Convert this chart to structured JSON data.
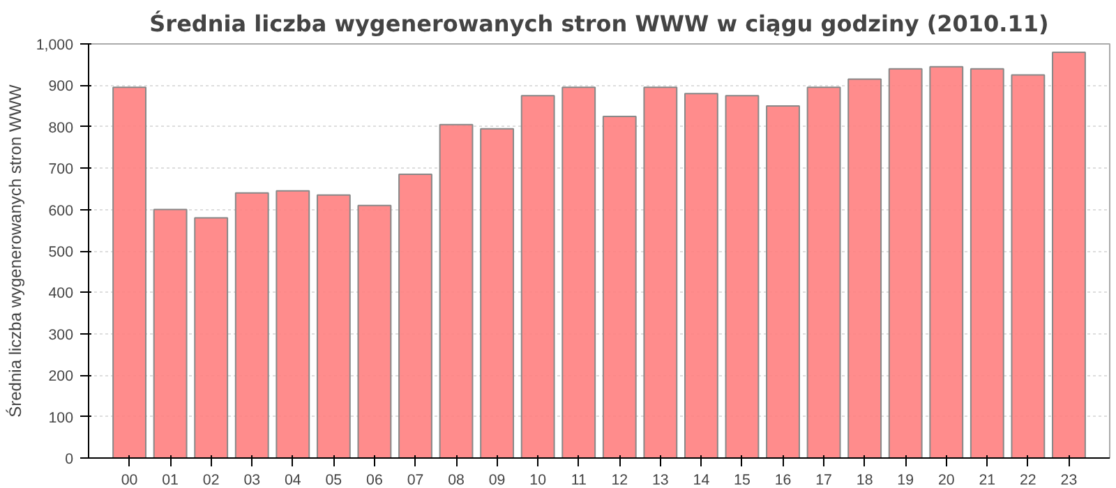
{
  "chart_data": {
    "type": "bar",
    "title": "Średnia liczba wygenerowanych stron WWW w ciągu godziny (2010.11)",
    "ylabel": "Średnia liczba wygenerowanych stron WWW",
    "categories": [
      "00",
      "01",
      "02",
      "03",
      "04",
      "05",
      "06",
      "07",
      "08",
      "09",
      "10",
      "11",
      "12",
      "13",
      "14",
      "15",
      "16",
      "17",
      "18",
      "19",
      "20",
      "21",
      "22",
      "23"
    ],
    "values": [
      895,
      600,
      580,
      640,
      645,
      635,
      610,
      685,
      805,
      795,
      875,
      895,
      825,
      895,
      880,
      875,
      850,
      895,
      915,
      940,
      945,
      940,
      925,
      980
    ],
    "color": "#ff7f7f",
    "ylim": [
      0,
      1000
    ],
    "yticks": [
      0,
      100,
      200,
      300,
      400,
      500,
      600,
      700,
      800,
      900,
      {
        "value": 1000,
        "label": "1,000"
      }
    ],
    "grid": "y"
  }
}
